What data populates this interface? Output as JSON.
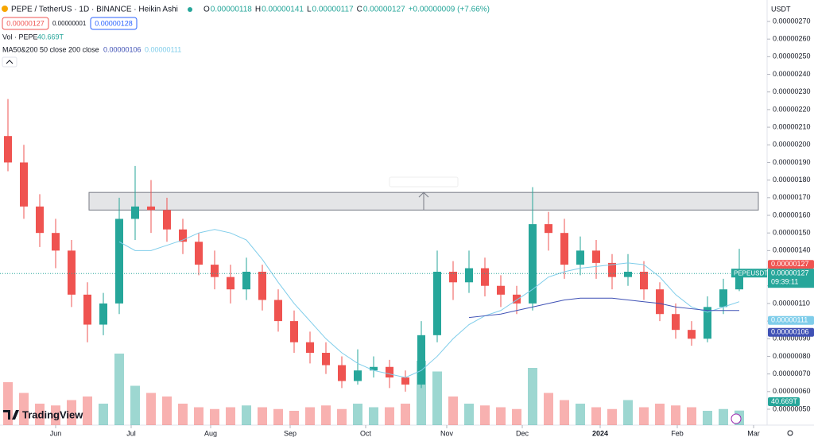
{
  "chart_data": {
    "type": "candlestick",
    "title": "PEPE / TetherUS · 1D · BINANCE · Heikin Ashi",
    "legend_ohlc": {
      "o_label": "O",
      "o": "0.00000118",
      "h_label": "H",
      "h": "0.00000141",
      "l_label": "L",
      "l": "0.00000117",
      "c_label": "C",
      "c": "0.00000127",
      "change": "+0.00000009 (+7.66%)"
    },
    "trade_boxes": {
      "sell": "0.00000127",
      "spread": "0.00000001",
      "buy": "0.00000128"
    },
    "volume_legend": {
      "label": "Vol · PEPE",
      "value": "40.669T"
    },
    "ma_legend": {
      "label": "MA50&200 50 close 200 close",
      "ma200": "0.00000106",
      "ma50": "0.00000111"
    },
    "axis_unit": "USDT",
    "symbol_badge": "PEPEUSDT",
    "countdown": "09:39:11",
    "price_badge": "0.00000127",
    "price_badge_2": "0.00000127",
    "ma50_badge": "0.00000111",
    "ma200_badge": "0.00000106",
    "volume_badge": "40.669T",
    "logo": "TradingView",
    "zone": [
      1.63e-06,
      1.73e-06
    ],
    "xlim": [
      -0.5,
      47.75
    ],
    "xticks": [
      {
        "value": 3,
        "label": "Jun"
      },
      {
        "value": 7.75,
        "label": "Jul"
      },
      {
        "value": 12.75,
        "label": "Aug"
      },
      {
        "value": 17.75,
        "label": "Sep"
      },
      {
        "value": 22.5,
        "label": "Oct"
      },
      {
        "value": 27.6,
        "label": "Nov"
      },
      {
        "value": 32.35,
        "label": "Dec"
      },
      {
        "value": 37.25,
        "label": "2024"
      },
      {
        "value": 42.1,
        "label": "Feb"
      },
      {
        "value": 46.9,
        "label": "Mar"
      }
    ],
    "ylim": [
      5e-07,
      2.7e-06
    ],
    "yticks": [
      {
        "value": 2.7e-06,
        "label": "0.00000270"
      },
      {
        "value": 2.6e-06,
        "label": "0.00000260"
      },
      {
        "value": 2.5e-06,
        "label": "0.00000250"
      },
      {
        "value": 2.4e-06,
        "label": "0.00000240"
      },
      {
        "value": 2.3e-06,
        "label": "0.00000230"
      },
      {
        "value": 2.2e-06,
        "label": "0.00000220"
      },
      {
        "value": 2.1e-06,
        "label": "0.00000210"
      },
      {
        "value": 2e-06,
        "label": "0.00000200"
      },
      {
        "value": 1.9e-06,
        "label": "0.00000190"
      },
      {
        "value": 1.8e-06,
        "label": "0.00000180"
      },
      {
        "value": 1.7e-06,
        "label": "0.00000170"
      },
      {
        "value": 1.6e-06,
        "label": "0.00000160"
      },
      {
        "value": 1.5e-06,
        "label": "0.00000150"
      },
      {
        "value": 1.4e-06,
        "label": "0.00000140"
      },
      {
        "value": 1.3e-06,
        "label": "0.00000130"
      },
      {
        "value": 1.2e-06,
        "label": "0.00000120"
      },
      {
        "value": 1.1e-06,
        "label": "0.00000110"
      },
      {
        "value": 1e-06,
        "label": "0.00000100"
      },
      {
        "value": 9e-07,
        "label": "0.00000090"
      },
      {
        "value": 8e-07,
        "label": "0.00000080"
      },
      {
        "value": 7e-07,
        "label": "0.00000070"
      },
      {
        "value": 6e-07,
        "label": "0.00000060"
      },
      {
        "value": 5e-07,
        "label": "0.00000050"
      }
    ],
    "up_color": "#26a69a",
    "down_color": "#ef5350",
    "open": [
      2.05e-06,
      1.9e-06,
      1.65e-06,
      1.5e-06,
      1.4e-06,
      1.15e-06,
      9.8e-07,
      1.1e-06,
      1.58e-06,
      1.65e-06,
      1.63e-06,
      1.52e-06,
      1.45e-06,
      1.32e-06,
      1.25e-06,
      1.18e-06,
      1.28e-06,
      1.12e-06,
      1e-06,
      8.8e-07,
      8.2e-07,
      7.5e-07,
      6.6e-07,
      7.2e-07,
      7.4e-07,
      6.8e-07,
      6.4e-07,
      9.2e-07,
      1.28e-06,
      1.22e-06,
      1.3e-06,
      1.2e-06,
      1.15e-06,
      1.1e-06,
      1.55e-06,
      1.5e-06,
      1.32e-06,
      1.4e-06,
      1.33e-06,
      1.25e-06,
      1.28e-06,
      1.18e-06,
      1.04e-06,
      9.5e-07,
      9e-07,
      1.08e-06,
      1.18e-06
    ],
    "high": [
      2.26e-06,
      2e-06,
      1.72e-06,
      1.58e-06,
      1.46e-06,
      1.22e-06,
      1.16e-06,
      1.7e-06,
      1.88e-06,
      1.8e-06,
      1.7e-06,
      1.58e-06,
      1.5e-06,
      1.4e-06,
      1.32e-06,
      1.36e-06,
      1.32e-06,
      1.18e-06,
      1.06e-06,
      9.4e-07,
      8.8e-07,
      8e-07,
      8.4e-07,
      8e-07,
      7.8e-07,
      7.2e-07,
      1e-06,
      1.4e-06,
      1.34e-06,
      1.4e-06,
      1.36e-06,
      1.26e-06,
      1.2e-06,
      1.76e-06,
      1.62e-06,
      1.58e-06,
      1.48e-06,
      1.46e-06,
      1.38e-06,
      1.38e-06,
      1.34e-06,
      1.22e-06,
      1.1e-06,
      1e-06,
      1.14e-06,
      1.24e-06,
      1.41e-06
    ],
    "low": [
      1.85e-06,
      1.58e-06,
      1.42e-06,
      1.3e-06,
      1.08e-06,
      8.8e-07,
      9.2e-07,
      1.04e-06,
      1.46e-06,
      1.5e-06,
      1.45e-06,
      1.38e-06,
      1.26e-06,
      1.18e-06,
      1.1e-06,
      1.12e-06,
      1.06e-06,
      9.4e-07,
      8.2e-07,
      7.6e-07,
      7e-07,
      6.2e-07,
      6.4e-07,
      6.8e-07,
      6.2e-07,
      6e-07,
      6.2e-07,
      8.8e-07,
      1.12e-06,
      1.16e-06,
      1.14e-06,
      1.08e-06,
      1.04e-06,
      1.06e-06,
      1.4e-06,
      1.24e-06,
      1.26e-06,
      1.24e-06,
      1.18e-06,
      1.2e-06,
      1.12e-06,
      1e-06,
      9e-07,
      8.6e-07,
      8.8e-07,
      1.04e-06,
      1.17e-06
    ],
    "close": [
      1.9e-06,
      1.65e-06,
      1.5e-06,
      1.4e-06,
      1.15e-06,
      9.8e-07,
      1.1e-06,
      1.58e-06,
      1.65e-06,
      1.63e-06,
      1.52e-06,
      1.45e-06,
      1.32e-06,
      1.25e-06,
      1.18e-06,
      1.28e-06,
      1.12e-06,
      1e-06,
      8.8e-07,
      8.2e-07,
      7.5e-07,
      6.6e-07,
      7.2e-07,
      7.4e-07,
      6.8e-07,
      6.4e-07,
      9.2e-07,
      1.28e-06,
      1.22e-06,
      1.3e-06,
      1.2e-06,
      1.15e-06,
      1.1e-06,
      1.55e-06,
      1.5e-06,
      1.32e-06,
      1.4e-06,
      1.33e-06,
      1.25e-06,
      1.28e-06,
      1.18e-06,
      1.04e-06,
      9.5e-07,
      9e-07,
      1.08e-06,
      1.18e-06,
      1.27e-06
    ],
    "volume": {
      "ylim": [
        0,
        300
      ],
      "values": [
        120,
        90,
        60,
        55,
        70,
        80,
        60,
        200,
        110,
        90,
        80,
        60,
        50,
        45,
        50,
        55,
        50,
        45,
        40,
        50,
        55,
        45,
        60,
        50,
        50,
        60,
        180,
        150,
        80,
        60,
        55,
        50,
        45,
        160,
        90,
        70,
        60,
        50,
        45,
        70,
        50,
        60,
        55,
        50,
        40,
        45,
        40.669
      ]
    },
    "series": [
      {
        "name": "MA50",
        "color": "#7fcdea",
        "values": [
          null,
          null,
          null,
          null,
          null,
          null,
          null,
          1.45e-06,
          1.4e-06,
          1.4e-06,
          1.43e-06,
          1.46e-06,
          1.5e-06,
          1.52e-06,
          1.5e-06,
          1.46e-06,
          1.35e-06,
          1.22e-06,
          1.1e-06,
          1e-06,
          9e-07,
          8.2e-07,
          7.6e-07,
          7.2e-07,
          7e-07,
          6.8e-07,
          7.2e-07,
          8e-07,
          9e-07,
          9.8e-07,
          1.03e-06,
          1.06e-06,
          1.12e-06,
          1.18e-06,
          1.25e-06,
          1.28e-06,
          1.3e-06,
          1.31e-06,
          1.32e-06,
          1.33e-06,
          1.32e-06,
          1.25e-06,
          1.15e-06,
          1.08e-06,
          1.05e-06,
          1.08e-06,
          1.11e-06
        ]
      },
      {
        "name": "MA200",
        "color": "#3f51b5",
        "values": [
          null,
          null,
          null,
          null,
          null,
          null,
          null,
          null,
          null,
          null,
          null,
          null,
          null,
          null,
          null,
          null,
          null,
          null,
          null,
          null,
          null,
          null,
          null,
          null,
          null,
          null,
          null,
          null,
          null,
          1.02e-06,
          1.03e-06,
          1.04e-06,
          1.06e-06,
          1.08e-06,
          1.1e-06,
          1.12e-06,
          1.13e-06,
          1.13e-06,
          1.13e-06,
          1.12e-06,
          1.11e-06,
          1.1e-06,
          1.08e-06,
          1.07e-06,
          1.06e-06,
          1.06e-06,
          1.06e-06
        ]
      }
    ]
  }
}
